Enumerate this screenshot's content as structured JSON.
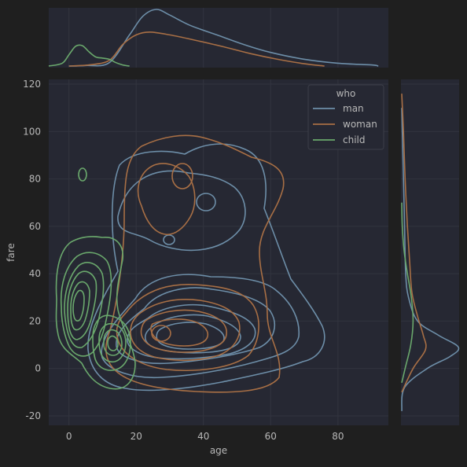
{
  "theme": {
    "figure_bg": "#1f1f1f",
    "axes_bg": "#262833",
    "grid": "#32343f",
    "text": "#b8b8b8",
    "legend_bg": "#262833",
    "legend_edge": "#3c3e48"
  },
  "chart_data": {
    "type": "kde_joint",
    "xlabel": "age",
    "ylabel": "fare",
    "xlim": [
      -6,
      95
    ],
    "ylim": [
      -24,
      122
    ],
    "xticks": [
      0,
      20,
      40,
      60,
      80
    ],
    "yticks": [
      -20,
      0,
      20,
      40,
      60,
      80,
      100,
      120
    ],
    "grid": true,
    "legend": {
      "title": "who",
      "placement": "top-right"
    },
    "series": [
      {
        "name": "man",
        "color": "#6d8ea8",
        "contour_centers": [
          [
            28,
            12
          ],
          [
            38,
            50
          ]
        ],
        "marginal_x": [
          [
            0,
            0.0
          ],
          [
            5,
            0.01
          ],
          [
            12,
            0.06
          ],
          [
            18,
            0.55
          ],
          [
            22,
            0.88
          ],
          [
            26,
            1.0
          ],
          [
            30,
            0.9
          ],
          [
            36,
            0.72
          ],
          [
            44,
            0.55
          ],
          [
            52,
            0.38
          ],
          [
            60,
            0.24
          ],
          [
            70,
            0.12
          ],
          [
            80,
            0.05
          ],
          [
            90,
            0.02
          ],
          [
            92,
            0.0
          ]
        ],
        "marginal_y": [
          [
            -18,
            0.0
          ],
          [
            -8,
            0.05
          ],
          [
            0,
            0.45
          ],
          [
            5,
            0.85
          ],
          [
            9,
            1.0
          ],
          [
            14,
            0.65
          ],
          [
            20,
            0.28
          ],
          [
            30,
            0.12
          ],
          [
            40,
            0.07
          ],
          [
            60,
            0.05
          ],
          [
            80,
            0.03
          ],
          [
            100,
            0.01
          ],
          [
            110,
            0.0
          ]
        ]
      },
      {
        "name": "woman",
        "color": "#a86f45",
        "contour_centers": [
          [
            30,
            14
          ],
          [
            34,
            68
          ]
        ],
        "marginal_x": [
          [
            0,
            0.0
          ],
          [
            6,
            0.02
          ],
          [
            12,
            0.1
          ],
          [
            16,
            0.38
          ],
          [
            20,
            0.55
          ],
          [
            24,
            0.6
          ],
          [
            30,
            0.55
          ],
          [
            38,
            0.45
          ],
          [
            46,
            0.34
          ],
          [
            54,
            0.22
          ],
          [
            62,
            0.12
          ],
          [
            70,
            0.04
          ],
          [
            76,
            0.0
          ]
        ],
        "marginal_y": [
          [
            -10,
            0.0
          ],
          [
            0,
            0.2
          ],
          [
            8,
            0.42
          ],
          [
            14,
            0.38
          ],
          [
            22,
            0.28
          ],
          [
            32,
            0.18
          ],
          [
            45,
            0.14
          ],
          [
            60,
            0.1
          ],
          [
            80,
            0.06
          ],
          [
            100,
            0.03
          ],
          [
            116,
            0.0
          ]
        ]
      },
      {
        "name": "child",
        "color": "#6aa86c",
        "contour_centers": [
          [
            3,
            26
          ],
          [
            15,
            8
          ]
        ],
        "marginal_x": [
          [
            -6,
            0.0
          ],
          [
            -2,
            0.05
          ],
          [
            0,
            0.2
          ],
          [
            2,
            0.35
          ],
          [
            4,
            0.36
          ],
          [
            6,
            0.25
          ],
          [
            8,
            0.16
          ],
          [
            10,
            0.14
          ],
          [
            12,
            0.12
          ],
          [
            14,
            0.06
          ],
          [
            16,
            0.02
          ],
          [
            18,
            0.0
          ]
        ],
        "marginal_y": [
          [
            -6,
            0.0
          ],
          [
            0,
            0.06
          ],
          [
            10,
            0.16
          ],
          [
            20,
            0.2
          ],
          [
            30,
            0.17
          ],
          [
            40,
            0.1
          ],
          [
            50,
            0.04
          ],
          [
            60,
            0.01
          ],
          [
            70,
            0.0
          ]
        ]
      }
    ]
  }
}
